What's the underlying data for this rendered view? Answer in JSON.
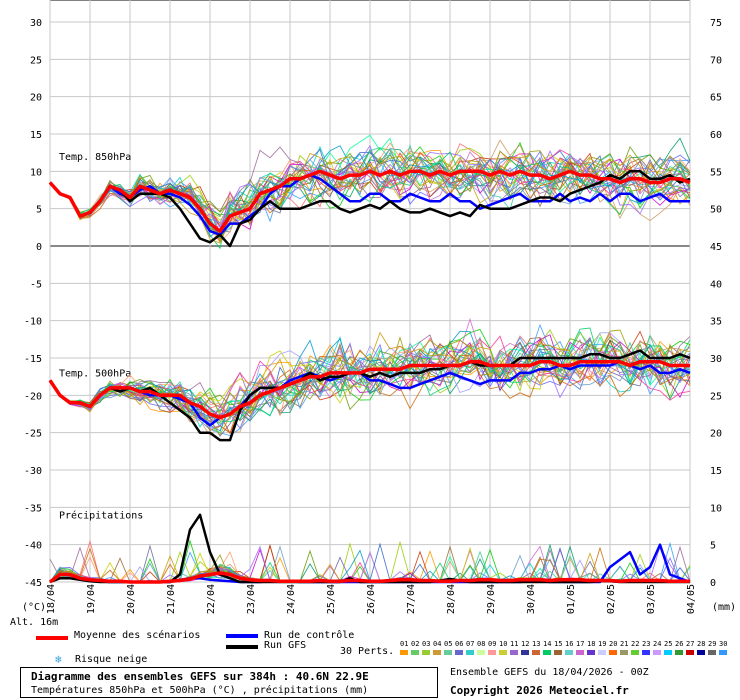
{
  "chart_data": {
    "type": "line",
    "title": "Diagramme des ensembles GEFS sur 384h : 40.6N 22.9E",
    "subtitle": "Températures 850hPa et 500hPa (°C) , précipitations (mm)",
    "x_tick_labels": [
      "19/04",
      "20/04",
      "21/04",
      "22/04",
      "23/04",
      "24/04",
      "25/04",
      "26/04",
      "27/04",
      "28/04",
      "29/04",
      "30/04",
      "01/05",
      "02/05",
      "03/05",
      "04/05"
    ],
    "first_x_label": "18/04",
    "x_unit_label": "(°C)",
    "right_unit_label": "(mm)",
    "left_axis": {
      "ticks": [
        30,
        25,
        20,
        15,
        10,
        5,
        0,
        -5,
        -10,
        -15,
        -20,
        -25,
        -30,
        -35,
        -40,
        -45
      ],
      "ylim": [
        -45,
        30
      ]
    },
    "right_axis": {
      "ticks": [
        75,
        70,
        65,
        60,
        55,
        50,
        45,
        40,
        35,
        30,
        25,
        20,
        15,
        10,
        5,
        0
      ]
    },
    "annotations": [
      "Temp. 850hPa",
      "Temp. 500hPa",
      "Précipitations"
    ],
    "grid": true,
    "steps_per_day": 4,
    "series": [
      {
        "name": "Moyenne des scénarios",
        "color": "#ff0000",
        "t850": [
          8.5,
          7,
          6.5,
          4,
          4.5,
          6,
          8,
          7.5,
          6.5,
          8,
          7.5,
          7,
          7.5,
          7,
          6.5,
          5,
          3,
          2,
          4,
          4.5,
          5,
          7,
          7.5,
          8,
          9,
          9,
          9.5,
          10,
          9.5,
          9,
          9.5,
          9.5,
          10,
          9.5,
          10,
          9.5,
          10,
          10,
          9.5,
          10,
          9.5,
          10,
          10,
          10,
          9.5,
          10,
          9.5,
          10,
          9.5,
          9.5,
          9,
          9.5,
          10,
          9.5,
          9.5,
          9,
          9,
          8.5,
          9,
          9,
          8.5,
          8.5,
          9,
          9,
          8.5
        ],
        "t500": [
          -18,
          -20,
          -21,
          -21,
          -21.5,
          -20,
          -19,
          -19,
          -19,
          -19.5,
          -19.5,
          -20,
          -20,
          -20,
          -21,
          -21.5,
          -22.5,
          -23,
          -22.5,
          -21.5,
          -21,
          -20,
          -19.5,
          -19,
          -18.5,
          -18,
          -17.5,
          -17.5,
          -17,
          -17,
          -17,
          -17,
          -16.5,
          -16.5,
          -16.5,
          -16.5,
          -16,
          -16,
          -16,
          -16,
          -16,
          -16,
          -15.5,
          -15.5,
          -16,
          -16,
          -16,
          -16,
          -16,
          -15.5,
          -15.5,
          -16,
          -16,
          -15.5,
          -15.5,
          -15.5,
          -15.5,
          -15.5,
          -16,
          -15.5,
          -15.5,
          -15.5,
          -16,
          -16,
          -16
        ],
        "precip": [
          0,
          1,
          1,
          0.5,
          0.3,
          0.2,
          0.1,
          0.1,
          0,
          0,
          0,
          0,
          0.1,
          0.2,
          0.4,
          0.8,
          1,
          1.2,
          1,
          0.5,
          0.3,
          0.2,
          0.2,
          0.1,
          0.1,
          0.1,
          0.1,
          0.2,
          0.1,
          0.1,
          0.2,
          0.2,
          0.1,
          0.1,
          0.2,
          0.3,
          0.3,
          0.2,
          0.2,
          0.1,
          0.1,
          0.2,
          0.2,
          0.3,
          0.3,
          0.2,
          0.2,
          0.3,
          0.3,
          0.3,
          0.2,
          0.3,
          0.3,
          0.3,
          0.2,
          0.2,
          0.2,
          0.1,
          0.2,
          0.2,
          0.2,
          0.2,
          0.1,
          0.1,
          0.1
        ]
      },
      {
        "name": "Run de contrôle",
        "color": "#0000ff",
        "t850": [
          8.5,
          7,
          6.5,
          4,
          4.5,
          6,
          8,
          7,
          6.5,
          7.5,
          8,
          7,
          7,
          6.5,
          5.5,
          4,
          2,
          1.5,
          3,
          3,
          4,
          5,
          7,
          8,
          8,
          9,
          9.5,
          9,
          8,
          7,
          6,
          6,
          7,
          7,
          6,
          6,
          7,
          6.5,
          6,
          6,
          7,
          6,
          6,
          5,
          5.5,
          6,
          6.5,
          7,
          6,
          6,
          6,
          7,
          6,
          6.5,
          6,
          7,
          6,
          7,
          7,
          6,
          6.5,
          7,
          6,
          6,
          6
        ],
        "t500": [
          -18,
          -20,
          -21,
          -21,
          -21.5,
          -20,
          -19,
          -19,
          -19,
          -19.5,
          -20,
          -20,
          -20,
          -20.5,
          -21,
          -23,
          -24,
          -23,
          -22.5,
          -21.5,
          -20,
          -19,
          -19,
          -19,
          -18,
          -17.5,
          -17,
          -17.5,
          -18,
          -17.5,
          -17,
          -17,
          -18,
          -18,
          -18.5,
          -19,
          -19,
          -18.5,
          -18,
          -17.5,
          -17,
          -17.5,
          -18,
          -18.5,
          -18,
          -18,
          -18,
          -17,
          -17,
          -16.5,
          -16.5,
          -16,
          -16.5,
          -16,
          -16,
          -16,
          -16,
          -15.5,
          -16,
          -16.5,
          -16,
          -17,
          -17,
          -16.5,
          -17
        ],
        "precip": [
          0,
          1,
          1,
          0.5,
          0.2,
          0.1,
          0,
          0,
          0,
          0,
          0,
          0,
          0,
          0.3,
          0.5,
          0.5,
          0.3,
          0.2,
          0.1,
          0,
          0,
          0,
          0.1,
          0.1,
          0.1,
          0,
          0,
          0,
          0,
          0,
          0,
          0,
          0,
          0,
          0,
          0,
          0,
          0,
          0,
          0,
          0,
          0,
          0,
          0,
          0,
          0,
          0,
          0,
          0.1,
          0.1,
          0,
          0,
          0,
          0,
          0,
          0,
          2,
          3,
          4,
          1,
          2,
          5,
          1,
          0.5,
          0
        ]
      },
      {
        "name": "Run GFS",
        "color": "#000000",
        "t850": [
          8.5,
          7,
          6.5,
          4,
          4.5,
          6,
          8,
          7.5,
          6,
          7,
          7,
          7,
          6.5,
          5,
          3,
          1,
          0.5,
          1.5,
          0,
          3,
          3.5,
          5,
          6,
          5,
          5,
          5,
          5.5,
          6,
          6,
          5,
          4.5,
          5,
          5.5,
          5,
          6,
          5,
          4.5,
          4.5,
          5,
          4.5,
          4,
          4.5,
          4,
          5.5,
          5,
          5,
          5,
          5.5,
          6,
          6.5,
          6.5,
          6,
          7,
          7.5,
          8,
          8.5,
          9.5,
          9,
          10,
          10,
          9,
          9,
          9.5,
          8.5,
          9
        ],
        "t500": [
          -18,
          -20,
          -21,
          -21,
          -21.5,
          -20,
          -19,
          -19.5,
          -19,
          -19.5,
          -19,
          -20,
          -21,
          -22,
          -23,
          -25,
          -25,
          -26,
          -26,
          -22,
          -20,
          -19,
          -19,
          -19,
          -18.5,
          -18,
          -17,
          -18,
          -17.5,
          -17.5,
          -17,
          -17,
          -17.5,
          -17,
          -17.5,
          -17,
          -17,
          -17,
          -16.5,
          -16.5,
          -16,
          -16,
          -15.5,
          -16,
          -16,
          -16,
          -16,
          -15,
          -15,
          -15,
          -15,
          -15,
          -15,
          -15,
          -14.5,
          -14.5,
          -15,
          -15,
          -14.5,
          -14,
          -15,
          -15,
          -15,
          -14.5,
          -15
        ],
        "precip": [
          0,
          0.5,
          0.5,
          0.3,
          0.1,
          0,
          0,
          0,
          0,
          0,
          0,
          0,
          0,
          1,
          7,
          9,
          4,
          1,
          0.5,
          0,
          0,
          0,
          0,
          0,
          0,
          0,
          0,
          0,
          0,
          0,
          0.5,
          0,
          0,
          0,
          0,
          0,
          0,
          0,
          0,
          0.2,
          0.4,
          0.2,
          0,
          0,
          0,
          0,
          0,
          0,
          0,
          0,
          0,
          0,
          0,
          0,
          0,
          0.1,
          0.1,
          0,
          0,
          0,
          0,
          0,
          0,
          0,
          0
        ]
      }
    ],
    "perturbation_count": 30,
    "perturbation_colors": [
      "#ff9900",
      "#6666ff",
      "#00cc00",
      "#cc66cc",
      "#996633",
      "#00cccc",
      "#ff6666",
      "#3399ff",
      "#99cc00",
      "#cc9966",
      "#666699",
      "#009966",
      "#cc3300",
      "#9999ff",
      "#00ff99",
      "#cc00cc",
      "#669900",
      "#ff9966",
      "#3366cc",
      "#996699",
      "#cccc00",
      "#33cc99",
      "#ff3399",
      "#6699cc",
      "#cc6600",
      "#0099cc",
      "#999900",
      "#9966ff",
      "#00cc66",
      "#cc9900"
    ]
  },
  "legend": {
    "mean": "Moyenne des scénarios",
    "control": "Run de contrôle",
    "gfs": "Run GFS",
    "snow": "Risque neige",
    "perts_label": "30 Perts.",
    "pert_numbers": [
      "01",
      "02",
      "03",
      "04",
      "05",
      "06",
      "07",
      "08",
      "09",
      "10",
      "11",
      "12",
      "13",
      "14",
      "15",
      "16",
      "17",
      "18",
      "19",
      "20",
      "21",
      "22",
      "23",
      "24",
      "25",
      "26",
      "27",
      "28",
      "29",
      "30"
    ],
    "pert_swatch_colors": [
      "#ff9900",
      "#66cc66",
      "#99cc33",
      "#cc9933",
      "#66cc99",
      "#6666cc",
      "#33cccc",
      "#ccff99",
      "#ff9999",
      "#cccc33",
      "#9966cc",
      "#333399",
      "#cc6633",
      "#00cc66",
      "#996633",
      "#66cccc",
      "#cc66cc",
      "#6633cc",
      "#ccccff",
      "#ff6600",
      "#999966",
      "#66cc33",
      "#3333ff",
      "#cc99ff",
      "#00ccff",
      "#339933",
      "#cc0000",
      "#000099",
      "#666666",
      "#3399ff"
    ]
  },
  "info": {
    "altitude": "Alt. 16m",
    "title_line": "Diagramme des ensembles GEFS sur 384h : 40.6N 22.9E",
    "subtitle_line": "Températures 850hPa et 500hPa (°C) , précipitations (mm)",
    "run_line": "Ensemble GEFS du 18/04/2026 - 00Z",
    "copyright": "Copyright 2026 Meteociel.fr"
  },
  "colors": {
    "mean": "#ff0000",
    "control": "#0000ff",
    "gfs": "#000000",
    "grid": "#c8c8c8"
  }
}
